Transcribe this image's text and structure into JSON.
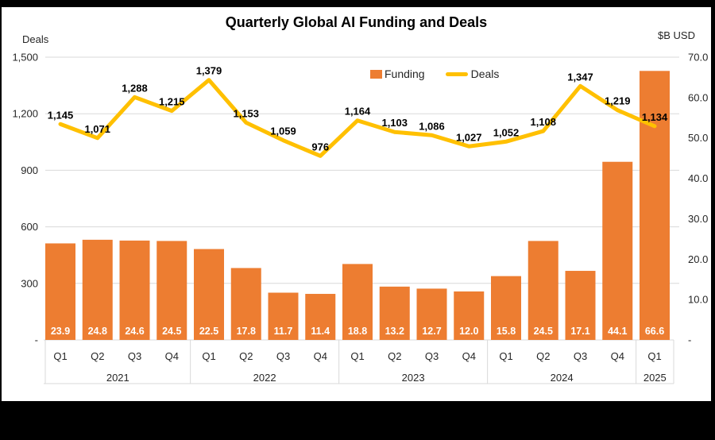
{
  "chart_data": {
    "type": "combo-bar-line",
    "title": "Quarterly Global AI Funding and Deals",
    "categories": [
      "Q1",
      "Q2",
      "Q3",
      "Q4",
      "Q1",
      "Q2",
      "Q3",
      "Q4",
      "Q1",
      "Q2",
      "Q3",
      "Q4",
      "Q1",
      "Q2",
      "Q3",
      "Q4",
      "Q1"
    ],
    "year_groups": [
      {
        "label": "2021",
        "span": 4
      },
      {
        "label": "2022",
        "span": 4
      },
      {
        "label": "2023",
        "span": 4
      },
      {
        "label": "2024",
        "span": 4
      },
      {
        "label": "2025",
        "span": 1
      }
    ],
    "series": [
      {
        "name": "Funding",
        "type": "bar",
        "axis": "right",
        "color": "#ED7D31",
        "label_color": "#ffffff",
        "values": [
          23.9,
          24.8,
          24.6,
          24.5,
          22.5,
          17.8,
          11.7,
          11.4,
          18.8,
          13.2,
          12.7,
          12.0,
          15.8,
          24.5,
          17.1,
          44.1,
          66.6
        ]
      },
      {
        "name": "Deals",
        "type": "line",
        "axis": "left",
        "color": "#FFC000",
        "label_color": "#000000",
        "values": [
          1145,
          1071,
          1288,
          1215,
          1379,
          1153,
          1059,
          976,
          1164,
          1103,
          1086,
          1027,
          1052,
          1108,
          1347,
          1219,
          1134
        ]
      }
    ],
    "left_axis": {
      "label": "Deals",
      "min": 0,
      "max": 1500,
      "tick_interval": 300,
      "tick_labels": [
        "1,500",
        "1,200",
        "900",
        "600",
        "300",
        "-"
      ]
    },
    "right_axis": {
      "label": "$B USD",
      "min": 0,
      "max": 70,
      "tick_interval": 10,
      "tick_labels": [
        "70.0",
        "60.0",
        "50.0",
        "40.0",
        "30.0",
        "20.0",
        "10.0",
        "-"
      ]
    },
    "legend": {
      "position": "top-center",
      "entries": [
        "Funding",
        "Deals"
      ]
    },
    "grid": "horizontal",
    "colors": {
      "gridline": "#D9D9D9",
      "axis_text": "#262626",
      "background": "#ffffff",
      "surround": "#000000"
    }
  }
}
